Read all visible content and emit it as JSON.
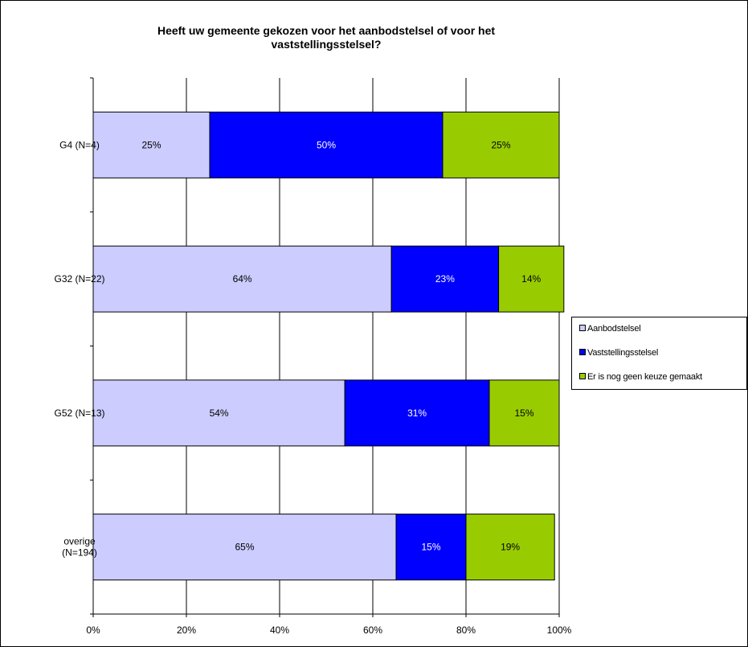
{
  "chart_data": {
    "type": "bar",
    "orientation": "horizontal",
    "stacked": "percent",
    "title": [
      "Heeft uw gemeente gekozen voor het aanbodstelsel of voor het",
      "vaststellingsstelsel?"
    ],
    "categories": [
      [
        "G4 (N=4)"
      ],
      [
        "G32 (N=22)"
      ],
      [
        "G52 (N=13)"
      ],
      [
        "overige",
        "(N=194)"
      ]
    ],
    "series": [
      {
        "name": "Aanbodstelsel",
        "color": "#ccccff",
        "values": [
          25,
          64,
          54,
          65
        ],
        "labels": [
          "25%",
          "64%",
          "54%",
          "65%"
        ]
      },
      {
        "name": "Vaststellingsstelsel",
        "color": "#0000ff",
        "values": [
          50,
          23,
          31,
          15
        ],
        "labels": [
          "50%",
          "23%",
          "31%",
          "15%"
        ]
      },
      {
        "name": "Er is nog geen keuze gemaakt",
        "color": "#99cc00",
        "values": [
          25,
          14,
          15,
          19
        ],
        "labels": [
          "25%",
          "14%",
          "15%",
          "19%"
        ]
      }
    ],
    "xlim": [
      0,
      100
    ],
    "xticks": [
      "0%",
      "20%",
      "40%",
      "60%",
      "80%",
      "100%"
    ],
    "grid": true,
    "legend_position": "right"
  }
}
